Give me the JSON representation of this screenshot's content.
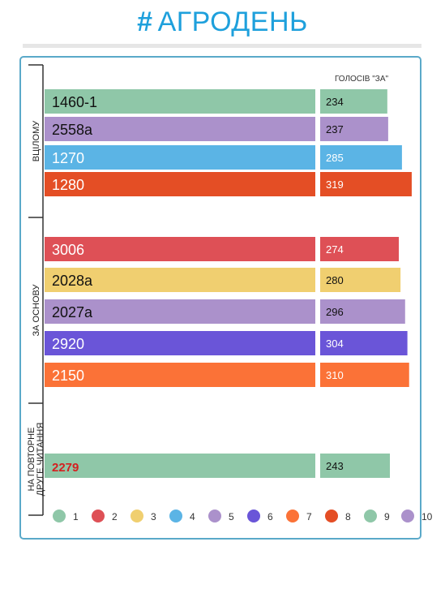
{
  "header": {
    "hash": "#",
    "title": "АГРОДЕНЬ"
  },
  "chart_data": {
    "type": "bar",
    "orientation": "horizontal",
    "value_column_label": "ГОЛОСІВ \"ЗА\"",
    "xlim": [
      0,
      320
    ],
    "groups": [
      {
        "label": "ВЦІЛОМУ",
        "bars": [
          {
            "category": "1460-1",
            "value": 234,
            "color": "#8fc7a8"
          },
          {
            "category": "2558а",
            "value": 237,
            "color": "#ab91cb"
          },
          {
            "category": "1270",
            "value": 285,
            "color": "#5bb4e5"
          },
          {
            "category": "1280",
            "value": 319,
            "color": "#e44e25"
          }
        ]
      },
      {
        "label": "ЗА ОСНОВУ",
        "bars": [
          {
            "category": "3006",
            "value": 274,
            "color": "#de5056"
          },
          {
            "category": "2028а",
            "value": 280,
            "color": "#f0cf70"
          },
          {
            "category": "2027а",
            "value": 296,
            "color": "#ab91cb"
          },
          {
            "category": "2920",
            "value": 304,
            "color": "#6a55d8"
          },
          {
            "category": "2150",
            "value": 310,
            "color": "#fb7237"
          }
        ]
      },
      {
        "label": "НА ПОВТОРНЕ ДРУГЕ ЧИТАННЯ",
        "bars": [
          {
            "category": "2279",
            "value": 243,
            "color": "#8fc7a8"
          }
        ]
      }
    ],
    "legend": [
      {
        "label": "1",
        "color": "#8fc7a8"
      },
      {
        "label": "2",
        "color": "#de5056"
      },
      {
        "label": "3",
        "color": "#f0cf70"
      },
      {
        "label": "4",
        "color": "#5bb4e5"
      },
      {
        "label": "5",
        "color": "#ab91cb"
      },
      {
        "label": "6",
        "color": "#6a55d8"
      },
      {
        "label": "7",
        "color": "#fb7237"
      },
      {
        "label": "8",
        "color": "#e44e25"
      },
      {
        "label": "9",
        "color": "#8fc7a8"
      },
      {
        "label": "10",
        "color": "#ab91cb"
      }
    ]
  }
}
